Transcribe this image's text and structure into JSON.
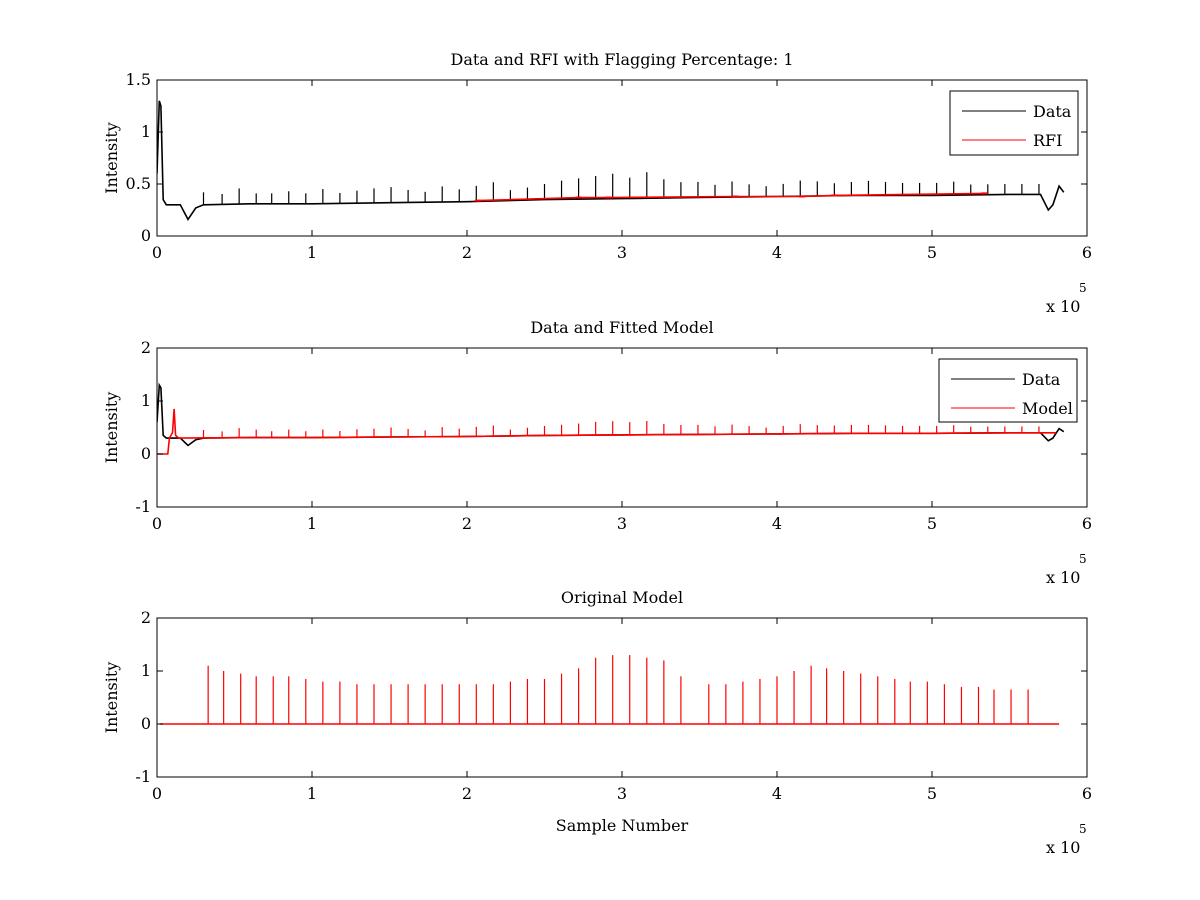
{
  "chart_data": [
    {
      "type": "line",
      "title": "Data and RFI with Flagging Percentage: 1",
      "xlabel": "",
      "ylabel": "Intensity",
      "xlim": [
        0,
        600000
      ],
      "ylim": [
        0,
        1.5
      ],
      "xticks": [
        "0",
        "1",
        "2",
        "3",
        "4",
        "5",
        "6"
      ],
      "yticks": [
        "0",
        "0.5",
        "1",
        "1.5"
      ],
      "x_exponent_label": "x 10",
      "x_exponent_power": "5",
      "legend_position": "top-right",
      "series": [
        {
          "name": "Data",
          "color": "#000000",
          "x": [
            0,
            1500,
            2500,
            4000,
            6000,
            8000,
            15000,
            20000,
            25000,
            30000,
            60000,
            100000,
            150000,
            200000,
            250000,
            300000,
            350000,
            400000,
            450000,
            500000,
            550000,
            570000,
            575000,
            578000,
            582000,
            585000
          ],
          "y": [
            0.6,
            1.3,
            1.25,
            0.35,
            0.3,
            0.3,
            0.3,
            0.16,
            0.27,
            0.3,
            0.31,
            0.31,
            0.32,
            0.33,
            0.35,
            0.36,
            0.37,
            0.38,
            0.39,
            0.39,
            0.4,
            0.4,
            0.25,
            0.3,
            0.48,
            0.42
          ],
          "spikes_x": [
            30000,
            42000,
            53000,
            64000,
            74000,
            85000,
            96000,
            107000,
            118000,
            129000,
            140000,
            151000,
            162000,
            173000,
            184000,
            195000,
            206000,
            217000,
            228000,
            239000,
            250000,
            261000,
            272000,
            283000,
            294000,
            305000,
            316000,
            327000,
            338000,
            349000,
            360000,
            371000,
            382000,
            393000,
            404000,
            415000,
            426000,
            437000,
            448000,
            459000,
            470000,
            481000,
            492000,
            503000,
            514000,
            525000,
            536000,
            547000,
            558000,
            569000
          ],
          "spikes_height": [
            0.12,
            0.1,
            0.15,
            0.1,
            0.1,
            0.12,
            0.1,
            0.14,
            0.1,
            0.12,
            0.14,
            0.15,
            0.12,
            0.1,
            0.15,
            0.12,
            0.15,
            0.18,
            0.1,
            0.12,
            0.15,
            0.18,
            0.2,
            0.22,
            0.24,
            0.2,
            0.25,
            0.18,
            0.15,
            0.15,
            0.12,
            0.15,
            0.12,
            0.1,
            0.12,
            0.15,
            0.14,
            0.12,
            0.13,
            0.14,
            0.13,
            0.12,
            0.12,
            0.12,
            0.13,
            0.1,
            0.1,
            0.1,
            0.1,
            0.1
          ]
        },
        {
          "name": "RFI",
          "color": "#ff0000",
          "x": [
            207000,
            272000,
            291000,
            373000,
            416000,
            437000,
            534000
          ],
          "y": [
            0.34,
            0.37,
            0.37,
            0.38,
            0.38,
            0.39,
            0.41
          ]
        }
      ]
    },
    {
      "type": "line",
      "title": "Data and Fitted Model",
      "xlabel": "",
      "ylabel": "Intensity",
      "xlim": [
        0,
        600000
      ],
      "ylim": [
        -1,
        2
      ],
      "xticks": [
        "0",
        "1",
        "2",
        "3",
        "4",
        "5",
        "6"
      ],
      "yticks": [
        "-1",
        "0",
        "1",
        "2"
      ],
      "x_exponent_label": "x 10",
      "x_exponent_power": "5",
      "legend_position": "top-right",
      "series": [
        {
          "name": "Data",
          "color": "#000000",
          "x": [
            0,
            1500,
            2500,
            4000,
            6000,
            8000,
            15000,
            20000,
            25000,
            30000,
            60000,
            100000,
            150000,
            200000,
            250000,
            300000,
            350000,
            400000,
            450000,
            500000,
            550000,
            570000,
            575000,
            578000,
            582000,
            585000
          ],
          "y": [
            0.6,
            1.3,
            1.25,
            0.35,
            0.3,
            0.3,
            0.3,
            0.16,
            0.27,
            0.3,
            0.31,
            0.31,
            0.32,
            0.33,
            0.35,
            0.36,
            0.37,
            0.38,
            0.39,
            0.39,
            0.4,
            0.4,
            0.25,
            0.3,
            0.48,
            0.42
          ]
        },
        {
          "name": "Model",
          "color": "#ff0000",
          "x": [
            0,
            7000,
            8000,
            10000,
            11000,
            12000,
            14000,
            60000,
            100000,
            150000,
            200000,
            250000,
            300000,
            350000,
            400000,
            450000,
            500000,
            550000,
            580000
          ],
          "y": [
            0,
            0,
            0.3,
            0.4,
            0.85,
            0.35,
            0.3,
            0.31,
            0.31,
            0.32,
            0.33,
            0.35,
            0.36,
            0.37,
            0.38,
            0.39,
            0.39,
            0.4,
            0.4
          ],
          "spikes_x": [
            30000,
            42000,
            53000,
            64000,
            74000,
            85000,
            96000,
            107000,
            118000,
            129000,
            140000,
            151000,
            162000,
            173000,
            184000,
            195000,
            206000,
            217000,
            228000,
            239000,
            250000,
            261000,
            272000,
            283000,
            294000,
            305000,
            316000,
            327000,
            338000,
            349000,
            360000,
            371000,
            382000,
            393000,
            404000,
            415000,
            426000,
            437000,
            448000,
            459000,
            470000,
            481000,
            492000,
            503000,
            514000,
            525000,
            536000,
            547000,
            558000,
            569000
          ],
          "spikes_height": [
            0.15,
            0.12,
            0.18,
            0.15,
            0.12,
            0.15,
            0.12,
            0.15,
            0.12,
            0.15,
            0.16,
            0.18,
            0.15,
            0.12,
            0.18,
            0.15,
            0.18,
            0.2,
            0.12,
            0.15,
            0.18,
            0.2,
            0.22,
            0.25,
            0.26,
            0.24,
            0.26,
            0.2,
            0.18,
            0.18,
            0.15,
            0.18,
            0.15,
            0.12,
            0.15,
            0.18,
            0.16,
            0.15,
            0.16,
            0.16,
            0.15,
            0.14,
            0.14,
            0.14,
            0.15,
            0.12,
            0.12,
            0.12,
            0.12,
            0.12
          ]
        }
      ]
    },
    {
      "type": "line",
      "title": "Original Model",
      "xlabel": "Sample Number",
      "ylabel": "Intensity",
      "xlim": [
        0,
        600000
      ],
      "ylim": [
        -1,
        2
      ],
      "xticks": [
        "0",
        "1",
        "2",
        "3",
        "4",
        "5",
        "6"
      ],
      "yticks": [
        "-1",
        "0",
        "1",
        "2"
      ],
      "x_exponent_label": "x 10",
      "x_exponent_power": "5",
      "series": [
        {
          "color": "#ff0000",
          "x": [
            2000,
            582000
          ],
          "y": [
            0,
            0
          ],
          "spikes_x": [
            33000,
            43000,
            54000,
            64000,
            75000,
            85000,
            96000,
            107000,
            118000,
            129000,
            140000,
            151000,
            162000,
            173000,
            184000,
            195000,
            206000,
            217000,
            228000,
            239000,
            250000,
            261000,
            272000,
            283000,
            294000,
            305000,
            316000,
            327000,
            338000,
            356000,
            367000,
            378000,
            389000,
            400000,
            411000,
            422000,
            432000,
            443000,
            454000,
            465000,
            476000,
            486000,
            497000,
            508000,
            519000,
            530000,
            540000,
            551000,
            562000
          ],
          "spikes_height": [
            1.1,
            1.0,
            0.95,
            0.9,
            0.9,
            0.9,
            0.85,
            0.8,
            0.8,
            0.75,
            0.75,
            0.75,
            0.75,
            0.75,
            0.75,
            0.75,
            0.75,
            0.75,
            0.8,
            0.85,
            0.85,
            0.95,
            1.05,
            1.25,
            1.3,
            1.3,
            1.25,
            1.2,
            0.9,
            0.75,
            0.75,
            0.8,
            0.85,
            0.9,
            1.0,
            1.1,
            1.05,
            1.0,
            0.95,
            0.9,
            0.85,
            0.8,
            0.8,
            0.75,
            0.7,
            0.7,
            0.65,
            0.65,
            0.65
          ]
        }
      ]
    }
  ]
}
